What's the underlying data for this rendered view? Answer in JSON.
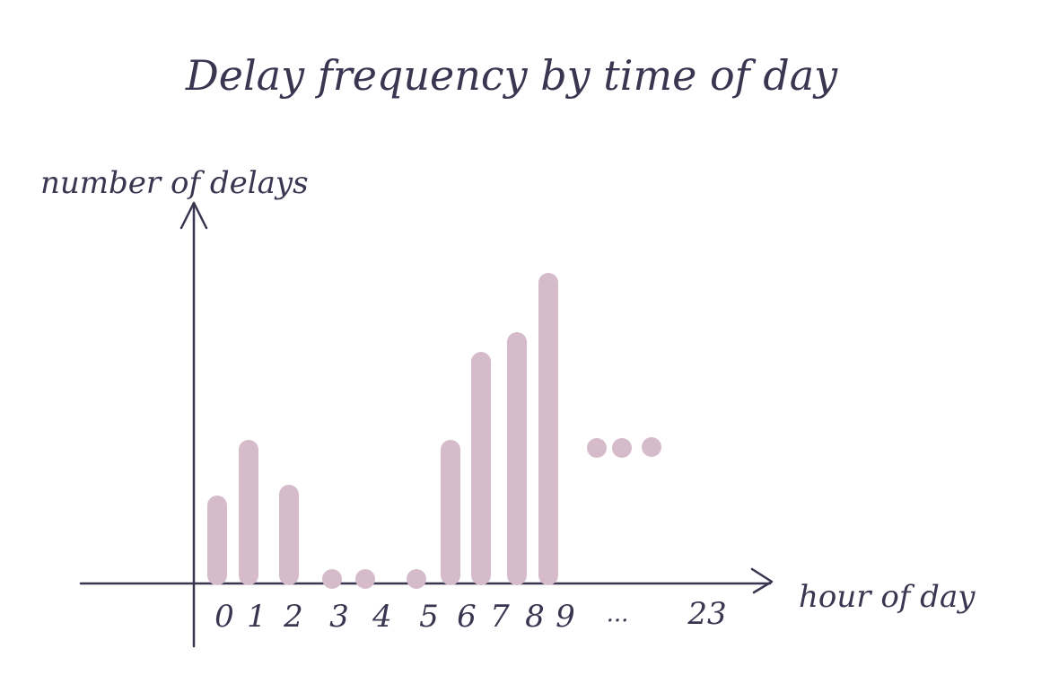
{
  "colors": {
    "ink": "#3a3550",
    "bar": "#d6bccb"
  },
  "chart_data": {
    "type": "bar",
    "title": "Delay frequency by time of day",
    "xlabel": "hour of day",
    "ylabel": "number of delays",
    "categories": [
      "0",
      "1",
      "2",
      "3",
      "4",
      "5",
      "6",
      "7",
      "8",
      "9"
    ],
    "values": [
      100,
      162,
      112,
      0,
      0,
      0,
      162,
      260,
      282,
      348
    ],
    "continuation": {
      "ellipsis": "...",
      "last_tick": "23"
    },
    "ylim": [
      0,
      430
    ],
    "grid": false,
    "legend": "none"
  }
}
